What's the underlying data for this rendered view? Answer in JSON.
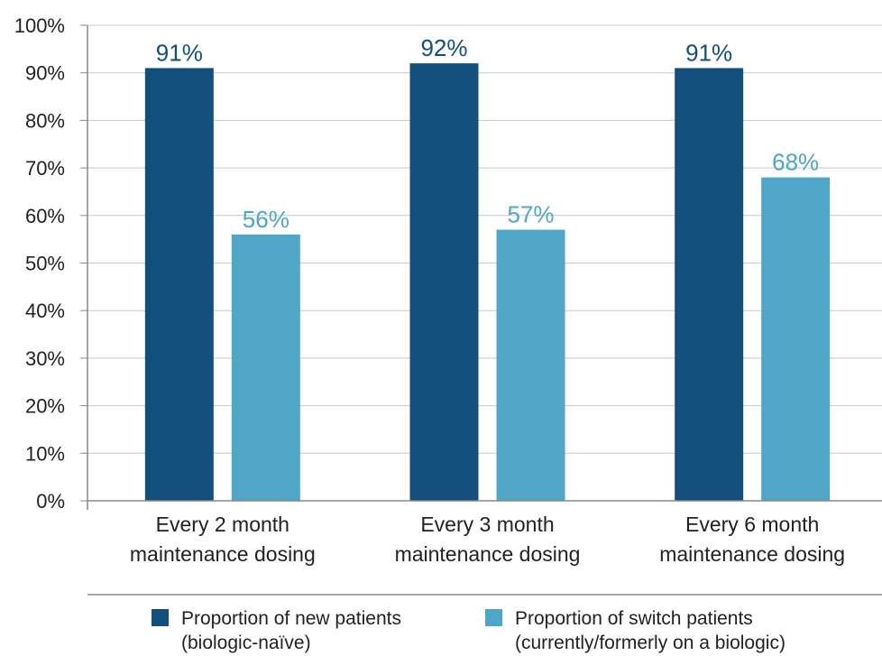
{
  "chart_data": {
    "type": "bar",
    "categories": [
      [
        "Every 2 month",
        "maintenance dosing"
      ],
      [
        "Every 3 month",
        "maintenance dosing"
      ],
      [
        "Every 6 month",
        "maintenance dosing"
      ]
    ],
    "series": [
      {
        "name": [
          "Proportion of new patients",
          "(biologic-naïve)"
        ],
        "color": "#134f7c",
        "values": [
          91,
          92,
          91
        ],
        "labels": [
          "91%",
          "92%",
          "91%"
        ]
      },
      {
        "name": [
          "Proportion of switch patients",
          "(currently/formerly on a biologic)"
        ],
        "color": "#4fa6c6",
        "values": [
          56,
          57,
          68
        ],
        "labels": [
          "56%",
          "57%",
          "68%"
        ]
      }
    ],
    "ylim": [
      0,
      100
    ],
    "yticks": [
      "0%",
      "10%",
      "20%",
      "30%",
      "40%",
      "50%",
      "60%",
      "70%",
      "80%",
      "90%",
      "100%"
    ],
    "grid": true,
    "legend_position": "bottom"
  }
}
